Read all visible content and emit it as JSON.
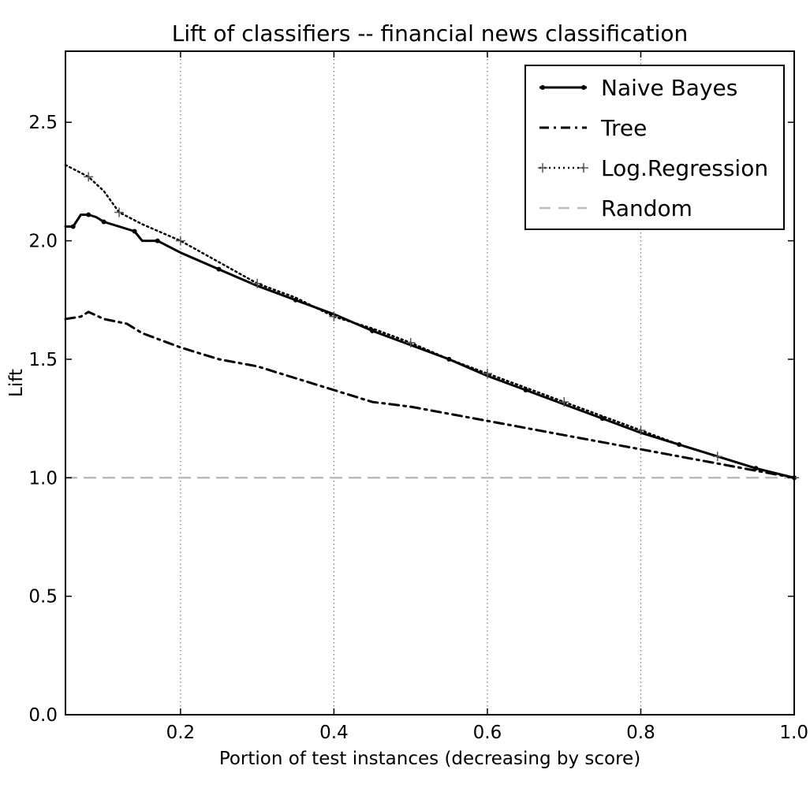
{
  "chart_data": {
    "type": "line",
    "title": "Lift of classifiers -- financial news classification",
    "xlabel": "Portion of test instances (decreasing by score)",
    "ylabel": "Lift",
    "xlim": [
      0.05,
      1.0
    ],
    "ylim": [
      0.0,
      2.8
    ],
    "x_ticks": [
      0.2,
      0.4,
      0.6,
      0.8,
      1.0
    ],
    "x_tick_labels": [
      "0.2",
      "0.4",
      "0.6",
      "0.8",
      "1.0"
    ],
    "y_ticks": [
      0.0,
      0.5,
      1.0,
      1.5,
      2.0,
      2.5
    ],
    "y_tick_labels": [
      "0.0",
      "0.5",
      "1.0",
      "1.5",
      "2.0",
      "2.5"
    ],
    "grid": "x-dotted",
    "legend_position": "top-right",
    "series": [
      {
        "name": "Naive Bayes",
        "color": "#000000",
        "style": "solid-with-dot-markers",
        "x": [
          0.05,
          0.06,
          0.07,
          0.08,
          0.09,
          0.1,
          0.12,
          0.14,
          0.15,
          0.17,
          0.2,
          0.25,
          0.3,
          0.35,
          0.4,
          0.45,
          0.5,
          0.55,
          0.6,
          0.65,
          0.7,
          0.75,
          0.8,
          0.85,
          0.9,
          0.95,
          1.0
        ],
        "y": [
          2.06,
          2.06,
          2.11,
          2.11,
          2.1,
          2.08,
          2.06,
          2.04,
          2.0,
          2.0,
          1.95,
          1.88,
          1.81,
          1.75,
          1.69,
          1.62,
          1.56,
          1.5,
          1.43,
          1.37,
          1.31,
          1.25,
          1.19,
          1.14,
          1.09,
          1.04,
          1.0
        ]
      },
      {
        "name": "Tree",
        "color": "#000000",
        "style": "dash-dot",
        "x": [
          0.05,
          0.07,
          0.08,
          0.1,
          0.13,
          0.15,
          0.2,
          0.25,
          0.3,
          0.35,
          0.4,
          0.45,
          0.5,
          0.55,
          0.6,
          0.65,
          0.7,
          0.75,
          0.8,
          0.85,
          0.9,
          0.95,
          1.0
        ],
        "y": [
          1.67,
          1.68,
          1.7,
          1.67,
          1.65,
          1.61,
          1.55,
          1.5,
          1.47,
          1.42,
          1.37,
          1.32,
          1.3,
          1.27,
          1.24,
          1.21,
          1.18,
          1.15,
          1.12,
          1.09,
          1.06,
          1.03,
          1.0
        ]
      },
      {
        "name": "Log.Regression",
        "color": "#000000",
        "style": "dotted-with-plus-markers",
        "x": [
          0.05,
          0.08,
          0.1,
          0.12,
          0.15,
          0.2,
          0.25,
          0.3,
          0.35,
          0.4,
          0.45,
          0.5,
          0.55,
          0.6,
          0.65,
          0.7,
          0.75,
          0.8,
          0.85,
          0.9,
          0.95,
          1.0
        ],
        "y": [
          2.32,
          2.27,
          2.21,
          2.12,
          2.07,
          2.0,
          1.91,
          1.82,
          1.76,
          1.68,
          1.63,
          1.57,
          1.5,
          1.44,
          1.38,
          1.32,
          1.26,
          1.2,
          1.14,
          1.09,
          1.04,
          1.0
        ]
      },
      {
        "name": "Random",
        "color": "#bbbbbb",
        "style": "dashed",
        "x": [
          0.05,
          1.0
        ],
        "y": [
          1.0,
          1.0
        ]
      }
    ]
  }
}
